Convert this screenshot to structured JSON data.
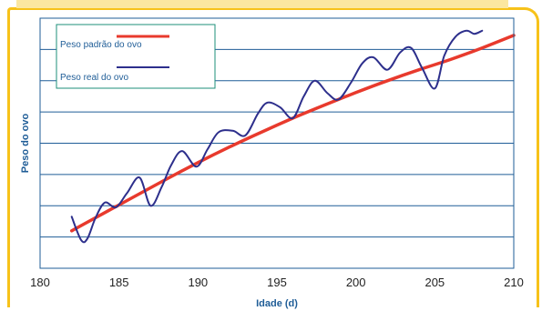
{
  "chart_data": {
    "type": "line",
    "title": "",
    "xlabel": "Idade (d)",
    "ylabel": "Peso do ovo",
    "xlim": [
      180,
      210
    ],
    "xticks": [
      180,
      185,
      190,
      195,
      200,
      205,
      210
    ],
    "ylim": [
      0,
      8
    ],
    "grid": true,
    "legend_position": "top-left",
    "series": [
      {
        "name": "Peso padrão do ovo",
        "color": "#e83a2d",
        "x": [
          182,
          184,
          186,
          188,
          190,
          192,
          194,
          196,
          198,
          200,
          202,
          204,
          206,
          208,
          210
        ],
        "y": [
          1.2,
          1.75,
          2.3,
          2.85,
          3.38,
          3.88,
          4.35,
          4.8,
          5.22,
          5.62,
          6.0,
          6.35,
          6.68,
          7.05,
          7.45
        ]
      },
      {
        "name": "Peso real do ovo",
        "color": "#2d2f8c",
        "x": [
          182,
          182.6,
          183.0,
          183.5,
          184.1,
          184.8,
          185.5,
          186.3,
          187.0,
          187.7,
          188.3,
          189.0,
          189.9,
          190.6,
          191.3,
          192.2,
          193.0,
          193.8,
          194.4,
          195.2,
          196.0,
          196.7,
          197.4,
          198.2,
          198.9,
          199.7,
          200.4,
          201.1,
          202.0,
          202.8,
          203.5,
          204.2,
          205.0,
          205.6,
          206.3,
          207.0,
          207.5,
          208.0
        ],
        "y": [
          1.65,
          0.9,
          0.95,
          1.6,
          2.1,
          1.95,
          2.4,
          2.9,
          2.0,
          2.6,
          3.3,
          3.75,
          3.25,
          3.8,
          4.35,
          4.4,
          4.25,
          4.95,
          5.3,
          5.15,
          4.8,
          5.5,
          6.0,
          5.6,
          5.4,
          5.95,
          6.55,
          6.75,
          6.35,
          6.9,
          7.05,
          6.4,
          5.75,
          6.8,
          7.4,
          7.6,
          7.5,
          7.6
        ]
      }
    ]
  }
}
